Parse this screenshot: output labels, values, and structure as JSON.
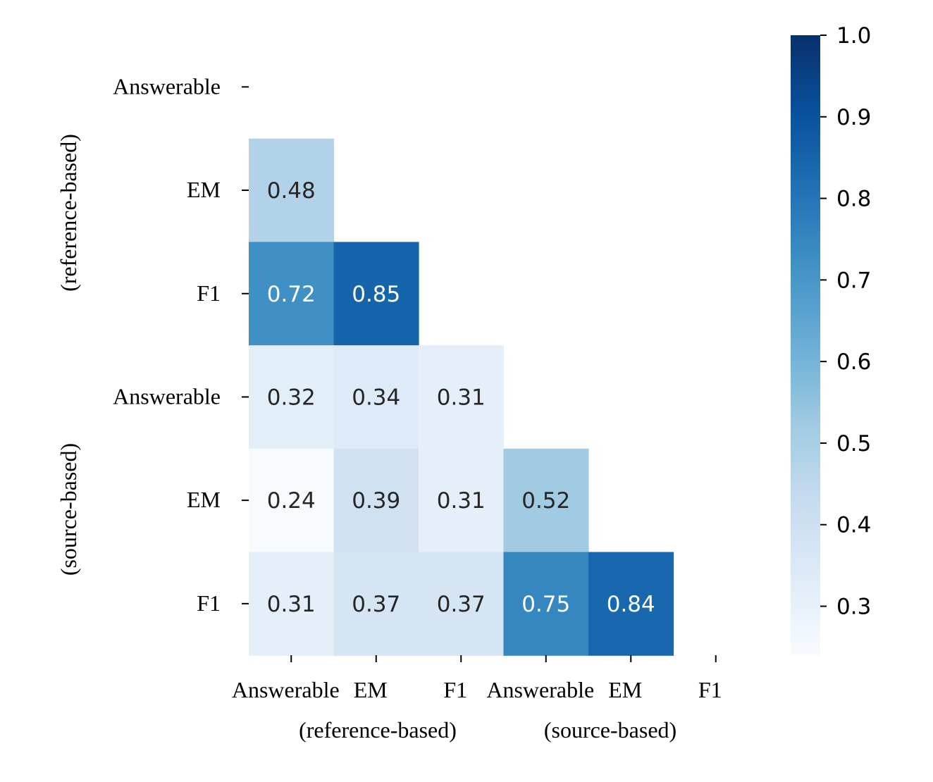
{
  "chart_data": {
    "type": "heatmap",
    "title": "",
    "row_labels": [
      "Answerable",
      "EM",
      "F1",
      "Answerable",
      "EM",
      "F1"
    ],
    "col_labels": [
      "Answerable",
      "EM",
      "F1",
      "Answerable",
      "EM",
      "F1"
    ],
    "row_groups": [
      "(reference-based)",
      "(source-based)"
    ],
    "col_groups": [
      "(reference-based)",
      "(source-based)"
    ],
    "mask": "upper-triangle-including-diagonal",
    "values": [
      [
        null,
        null,
        null,
        null,
        null,
        null
      ],
      [
        0.48,
        null,
        null,
        null,
        null,
        null
      ],
      [
        0.72,
        0.85,
        null,
        null,
        null,
        null
      ],
      [
        0.32,
        0.34,
        0.31,
        null,
        null,
        null
      ],
      [
        0.24,
        0.39,
        0.31,
        0.52,
        null,
        null
      ],
      [
        0.31,
        0.37,
        0.37,
        0.75,
        0.84,
        null
      ]
    ],
    "value_labels": [
      [
        "",
        "",
        "",
        "",
        "",
        ""
      ],
      [
        "0.48",
        "",
        "",
        "",
        "",
        ""
      ],
      [
        "0.72",
        "0.85",
        "",
        "",
        "",
        ""
      ],
      [
        "0.32",
        "0.34",
        "0.31",
        "",
        "",
        ""
      ],
      [
        "0.24",
        "0.39",
        "0.31",
        "0.52",
        "",
        ""
      ],
      [
        "0.31",
        "0.37",
        "0.37",
        "0.75",
        "0.84",
        ""
      ]
    ],
    "colormap": "Blues",
    "colorbar": {
      "min": 0.24,
      "max": 1.0,
      "ticks": [
        0.3,
        0.4,
        0.5,
        0.6,
        0.7,
        0.8,
        0.9,
        1.0
      ],
      "tick_labels": [
        "0.3",
        "0.4",
        "0.5",
        "0.6",
        "0.7",
        "0.8",
        "0.9",
        "1.0"
      ]
    }
  }
}
